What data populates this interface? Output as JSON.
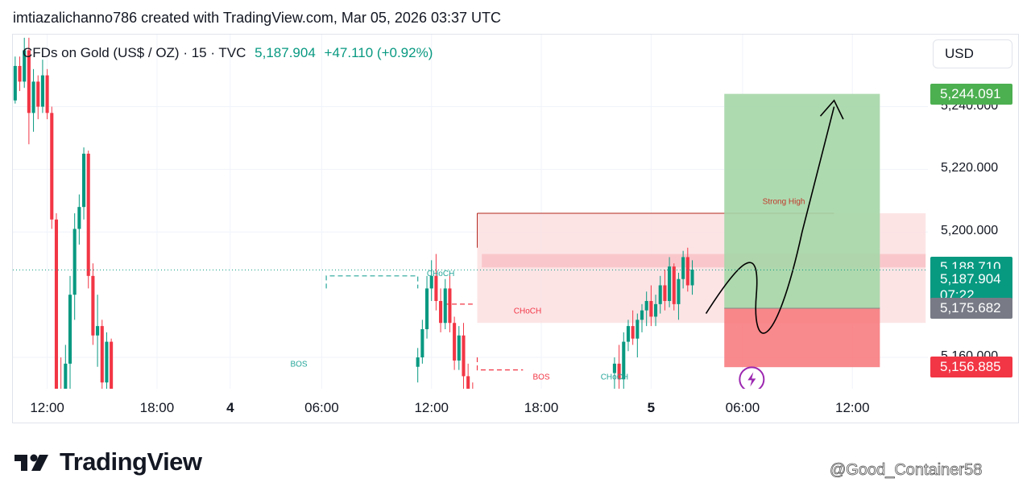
{
  "header": {
    "attribution": "imtiazalichanno786 created with TradingView.com, Mar 05, 2026 03:37 UTC"
  },
  "legend": {
    "symbol": "CFDs on Gold (US$ / OZ) · 15 · TVC",
    "price": "5,187.904",
    "change": "+47.110 (+0.92%)"
  },
  "currency_button": "USD",
  "price_tags": {
    "target": "5,244.091",
    "zone_top": "5,188.710",
    "last_price": "5,187.904",
    "countdown": "07:22",
    "entry": "5,175.682",
    "stop": "5,156.885"
  },
  "colors": {
    "up": "#089981",
    "down": "#f23645",
    "target_tag": "#4caf50",
    "last_tag": "#089981",
    "entry_tag": "#787b86",
    "stop_tag": "#f23645",
    "profit_zone": "#a5d6a7",
    "loss_zone": "#f77c80",
    "supply_zone": "#fcdfe1",
    "structure_green": "#26a69a",
    "structure_red": "#f23645",
    "alert_icon": "#9c27b0"
  },
  "brand": {
    "name": "TradingView",
    "logo_icon": "tradingview-logo"
  },
  "watermark": "@Good_Container58",
  "chart_data": {
    "type": "candlestick",
    "timeframe": "15",
    "ylim": [
      5150,
      5263
    ],
    "yticks": [
      "5,160.000",
      "5,200.000",
      "5,220.000",
      "5,240.000"
    ],
    "ytick_values": [
      5160,
      5200,
      5220,
      5240
    ],
    "xticks": [
      "12:00",
      "18:00",
      "4",
      "06:00",
      "12:00",
      "18:00",
      "5",
      "06:00",
      "12:00"
    ],
    "xtick_bold": [
      false,
      false,
      true,
      false,
      false,
      false,
      true,
      false,
      false
    ],
    "xtick_index": [
      7,
      31,
      47,
      67,
      91,
      115,
      139,
      159,
      183
    ],
    "total_bars": 200,
    "candles": [
      [
        0,
        5242,
        5256,
        5241,
        5253
      ],
      [
        1,
        5253,
        5256,
        5245,
        5248
      ],
      [
        2,
        5248,
        5262,
        5246,
        5258
      ],
      [
        3,
        5258,
        5262,
        5228,
        5238
      ],
      [
        4,
        5238,
        5252,
        5232,
        5248
      ],
      [
        5,
        5248,
        5250,
        5236,
        5240
      ],
      [
        6,
        5240,
        5255,
        5238,
        5250
      ],
      [
        7,
        5250,
        5252,
        5236,
        5238
      ],
      [
        8,
        5238,
        5240,
        5201,
        5204
      ],
      [
        9,
        5204,
        5206,
        5145,
        5150
      ],
      [
        10,
        5150,
        5160,
        5140,
        5145
      ],
      [
        11,
        5145,
        5164,
        5140,
        5158
      ],
      [
        12,
        5158,
        5186,
        5150,
        5180
      ],
      [
        13,
        5180,
        5206,
        5172,
        5201
      ],
      [
        14,
        5201,
        5212,
        5196,
        5208
      ],
      [
        15,
        5208,
        5227,
        5204,
        5225
      ],
      [
        16,
        5225,
        5226,
        5182,
        5186
      ],
      [
        17,
        5186,
        5190,
        5164,
        5167
      ],
      [
        18,
        5167,
        5180,
        5157,
        5170
      ],
      [
        19,
        5170,
        5172,
        5150,
        5152
      ],
      [
        20,
        5152,
        5168,
        5148,
        5165
      ],
      [
        21,
        5165,
        5166,
        5148,
        5150
      ],
      [
        88,
        5157,
        5163,
        5152,
        5160
      ],
      [
        89,
        5160,
        5172,
        5158,
        5169
      ],
      [
        90,
        5169,
        5186,
        5166,
        5182
      ],
      [
        91,
        5182,
        5191,
        5178,
        5186
      ],
      [
        92,
        5186,
        5193,
        5175,
        5178
      ],
      [
        93,
        5178,
        5182,
        5168,
        5171
      ],
      [
        94,
        5171,
        5185,
        5169,
        5182
      ],
      [
        95,
        5182,
        5187,
        5168,
        5171
      ],
      [
        96,
        5171,
        5173,
        5156,
        5159
      ],
      [
        97,
        5159,
        5170,
        5156,
        5167
      ],
      [
        98,
        5167,
        5171,
        5150,
        5154
      ],
      [
        99,
        5154,
        5158,
        5142,
        5147
      ],
      [
        100,
        5147,
        5152,
        5140,
        5144
      ],
      [
        131,
        5155,
        5160,
        5150,
        5158
      ],
      [
        132,
        5158,
        5164,
        5150,
        5153
      ],
      [
        133,
        5153,
        5168,
        5150,
        5165
      ],
      [
        134,
        5165,
        5172,
        5162,
        5170
      ],
      [
        135,
        5170,
        5175,
        5164,
        5166
      ],
      [
        136,
        5166,
        5174,
        5160,
        5172
      ],
      [
        137,
        5172,
        5177,
        5168,
        5175
      ],
      [
        138,
        5175,
        5181,
        5170,
        5178
      ],
      [
        139,
        5178,
        5183,
        5170,
        5173
      ],
      [
        140,
        5173,
        5180,
        5170,
        5177
      ],
      [
        141,
        5177,
        5186,
        5174,
        5183
      ],
      [
        142,
        5183,
        5188,
        5175,
        5178
      ],
      [
        143,
        5178,
        5192,
        5176,
        5189
      ],
      [
        144,
        5189,
        5190,
        5175,
        5177
      ],
      [
        145,
        5177,
        5187,
        5172,
        5185
      ],
      [
        146,
        5185,
        5194,
        5182,
        5192
      ],
      [
        147,
        5192,
        5195,
        5181,
        5183
      ],
      [
        148,
        5183,
        5191,
        5180,
        5188
      ]
    ],
    "annotations": {
      "structure_labels": [
        {
          "text": "BOS",
          "x": 62,
          "y": 5157,
          "color": "green"
        },
        {
          "text": "CHoCH",
          "x": 93,
          "y": 5186,
          "color": "green"
        },
        {
          "text": "CHoCH",
          "x": 112,
          "y": 5174,
          "color": "red"
        },
        {
          "text": "BOS",
          "x": 115,
          "y": 5153,
          "color": "red"
        },
        {
          "text": "CHoCH",
          "x": 131,
          "y": 5153,
          "color": "green"
        },
        {
          "text": "Strong High",
          "x": 168,
          "y": 5209,
          "color": "red"
        }
      ],
      "strong_high_level": 5206,
      "supply_zone": [
        5171,
        5206
      ],
      "demand_box": [
        5188.71,
        5193
      ],
      "long_position": {
        "entry": 5175.682,
        "target": 5244.091,
        "stop": 5156.885
      }
    }
  }
}
